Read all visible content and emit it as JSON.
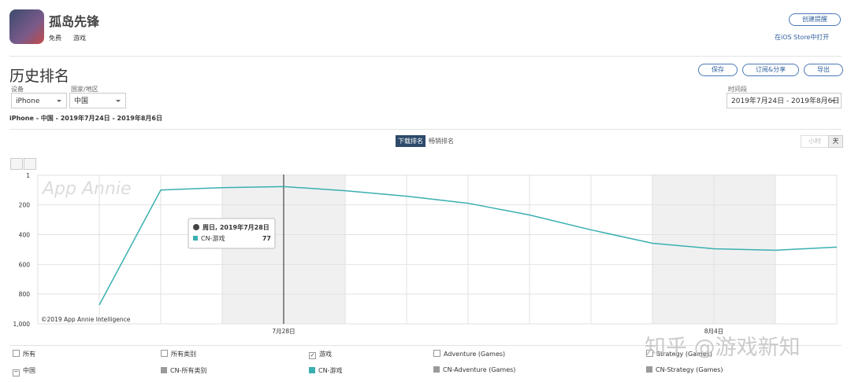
{
  "header": {
    "app_name": "孤岛先锋",
    "price": "免费",
    "category": "游戏",
    "create_alert": "创建提醒",
    "open_store": "在iOS Store中打开"
  },
  "section": {
    "title": "历史排名",
    "buttons": [
      "保存",
      "订阅&分享",
      "导出"
    ],
    "device_label": "设备",
    "device": "iPhone",
    "country_label": "国家/地区",
    "country": "中国",
    "period_label": "时间段",
    "period": "2019年7月24日 - 2019年8月6日",
    "summary": "iPhone - 中国 - 2019年7月24日 - 2019年8月6日"
  },
  "tabs": [
    "下载排名",
    "畅销排名"
  ],
  "granularity": [
    "小时",
    "天"
  ],
  "chart_data": {
    "type": "line",
    "watermark": "App Annie",
    "credit": "©2019 App Annie Intelligence",
    "categories": [
      null,
      null,
      null,
      null,
      "7月28日",
      null,
      null,
      null,
      null,
      null,
      null,
      "8月4日",
      null,
      null
    ],
    "series": [
      {
        "name": "CN-游戏",
        "color": "#3aafb0",
        "values": [
          null,
          873,
          100,
          84,
          77,
          105,
          142,
          189,
          268,
          368,
          458,
          495,
          505,
          484
        ]
      }
    ],
    "ylim": [
      1,
      1000
    ],
    "y_reversed": true,
    "yticks": [
      1,
      200,
      400,
      600,
      800,
      {
        "value": 1000,
        "label": "1,000"
      }
    ],
    "grid": true,
    "tooltip": {
      "date": "周日, 2019年7月28日",
      "index": 4
    }
  },
  "legend_table": {
    "columns": [
      "所有",
      "所有类别",
      "游戏",
      "Adventure (Games)",
      "Strategy (Games)"
    ],
    "checked": [
      false,
      false,
      true,
      false,
      false
    ],
    "row_label": "中国",
    "cells": [
      "CN-所有类别",
      "CN-游戏",
      "CN-Adventure (Games)",
      "CN-Strategy (Games)"
    ]
  },
  "watermark": "知乎 @游戏新知"
}
